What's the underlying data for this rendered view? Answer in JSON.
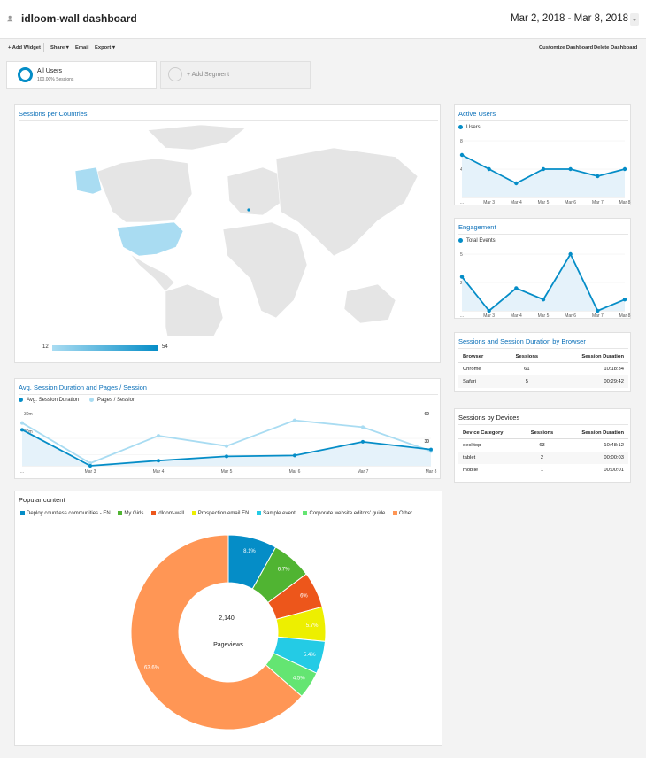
{
  "header": {
    "title": "idloom-wall dashboard",
    "date_range": "Mar 2, 2018 - Mar 8, 2018"
  },
  "toolbar": {
    "add_widget": "+ Add Widget",
    "share": "Share ▾",
    "email": "Email",
    "export": "Export ▾",
    "customize": "Customize Dashboard",
    "delete": "Delete Dashboard"
  },
  "segments": {
    "all_users": "All Users",
    "all_users_sub": "100.00% Sessions",
    "add_segment": "+ Add Segment"
  },
  "countries": {
    "title": "Sessions per Countries",
    "scale_min": "12",
    "scale_max": "54",
    "colors": {
      "low": "#a9dcf2",
      "high": "#058dc7"
    }
  },
  "active_users": {
    "title": "Active Users",
    "legend": "Users",
    "y_top": "8",
    "y_mid": "4",
    "x_labels": [
      "...",
      "Mar 3",
      "Mar 4",
      "Mar 5",
      "Mar 6",
      "Mar 7",
      "Mar 8"
    ],
    "chart_data": {
      "type": "area",
      "x": [
        "Mar 2",
        "Mar 3",
        "Mar 4",
        "Mar 5",
        "Mar 6",
        "Mar 7",
        "Mar 8"
      ],
      "series": [
        {
          "name": "Users",
          "values": [
            6,
            4,
            2,
            4,
            4,
            3,
            4
          ]
        }
      ],
      "ylim": [
        0,
        8
      ]
    }
  },
  "engagement": {
    "title": "Engagement",
    "legend": "Total Events",
    "y_top": "5",
    "y_mid": "2.5",
    "x_labels": [
      "...",
      "Mar 3",
      "Mar 4",
      "Mar 5",
      "Mar 6",
      "Mar 7",
      "Mar 8"
    ],
    "chart_data": {
      "type": "area",
      "x": [
        "Mar 2",
        "Mar 3",
        "Mar 4",
        "Mar 5",
        "Mar 6",
        "Mar 7",
        "Mar 8"
      ],
      "series": [
        {
          "name": "Total Events",
          "values": [
            3,
            0,
            2,
            1,
            5,
            0,
            1
          ]
        }
      ],
      "ylim": [
        0,
        5
      ]
    }
  },
  "browser": {
    "title": "Sessions and Session Duration by Browser",
    "headers": [
      "Browser",
      "Sessions",
      "Session Duration"
    ],
    "rows": [
      [
        "Chrome",
        "61",
        "10:18:34"
      ],
      [
        "Safari",
        "5",
        "00:29:42"
      ]
    ]
  },
  "devices": {
    "title": "Sessions by Devices",
    "headers": [
      "Device Category",
      "Sessions",
      "Session Duration"
    ],
    "rows": [
      [
        "desktop",
        "63",
        "10:48:12"
      ],
      [
        "tablet",
        "2",
        "00:00:03"
      ],
      [
        "mobile",
        "1",
        "00:00:01"
      ]
    ]
  },
  "avg_session": {
    "title": "Avg. Session Duration and Pages / Session",
    "legend_1": "Avg. Session Duration",
    "legend_2": "Pages / Session",
    "y_left": [
      "30m",
      "20m",
      "10m"
    ],
    "y_right_top": "60",
    "y_right_mid": "30",
    "x_labels": [
      "...",
      "Mar 3",
      "Mar 4",
      "Mar 5",
      "Mar 6",
      "Mar 7",
      "Mar 8"
    ],
    "chart_data": {
      "type": "line",
      "x": [
        "Mar 2",
        "Mar 3",
        "Mar 4",
        "Mar 5",
        "Mar 6",
        "Mar 7",
        "Mar 8"
      ],
      "series": [
        {
          "name": "Avg. Session Duration",
          "values": [
            21,
            0,
            3,
            5.5,
            6,
            14,
            9.5
          ]
        },
        {
          "name": "Pages / Session",
          "values": [
            50,
            3,
            35,
            23,
            53,
            45,
            17
          ]
        }
      ]
    }
  },
  "popular": {
    "title": "Popular content",
    "center_value": "2,140",
    "center_label": "Pageviews",
    "legend": [
      {
        "label": "Deploy countless communities - EN",
        "color": "#058dc7"
      },
      {
        "label": "My Girls",
        "color": "#50b432"
      },
      {
        "label": "idloom-wall",
        "color": "#ed561b"
      },
      {
        "label": "Prospection email EN",
        "color": "#edef00"
      },
      {
        "label": "Sample event",
        "color": "#24cbe5"
      },
      {
        "label": "Corporate website editors' guide",
        "color": "#64e572"
      },
      {
        "label": "Other",
        "color": "#ff9655"
      }
    ],
    "chart_data": {
      "type": "pie",
      "categories": [
        "Deploy countless communities - EN",
        "My Girls",
        "idloom-wall",
        "Prospection email EN",
        "Sample event",
        "Corporate website editors' guide",
        "Other"
      ],
      "values": [
        8.1,
        6.7,
        6,
        5.7,
        5.4,
        4.5,
        63.6
      ]
    },
    "slice_labels": [
      "8.1%",
      "6.7%",
      "6%",
      "5.7%",
      "5.4%",
      "4.5%",
      "63.6%"
    ]
  }
}
